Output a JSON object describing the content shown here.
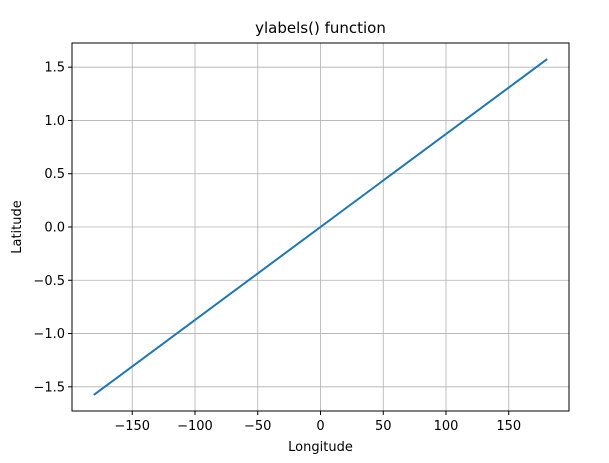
{
  "chart_data": {
    "type": "line",
    "title": "ylabels() function",
    "xlabel": "Longitude",
    "ylabel": "Latitude",
    "xlim": [
      -198,
      198
    ],
    "ylim": [
      -1.727,
      1.727
    ],
    "grid": true,
    "xticks": [
      -150,
      -100,
      -50,
      0,
      50,
      100,
      150
    ],
    "xtick_labels": [
      "−150",
      "−100",
      "−50",
      "0",
      "50",
      "100",
      "150"
    ],
    "yticks": [
      -1.5,
      -1.0,
      -0.5,
      0.0,
      0.5,
      1.0,
      1.5
    ],
    "ytick_labels": [
      "−1.5",
      "−1.0",
      "−0.5",
      "0.0",
      "0.5",
      "1.0",
      "1.5"
    ],
    "series": [
      {
        "color": "#1f77b4",
        "x": [
          -180,
          180
        ],
        "y": [
          -1.5708,
          1.5708
        ]
      }
    ]
  }
}
